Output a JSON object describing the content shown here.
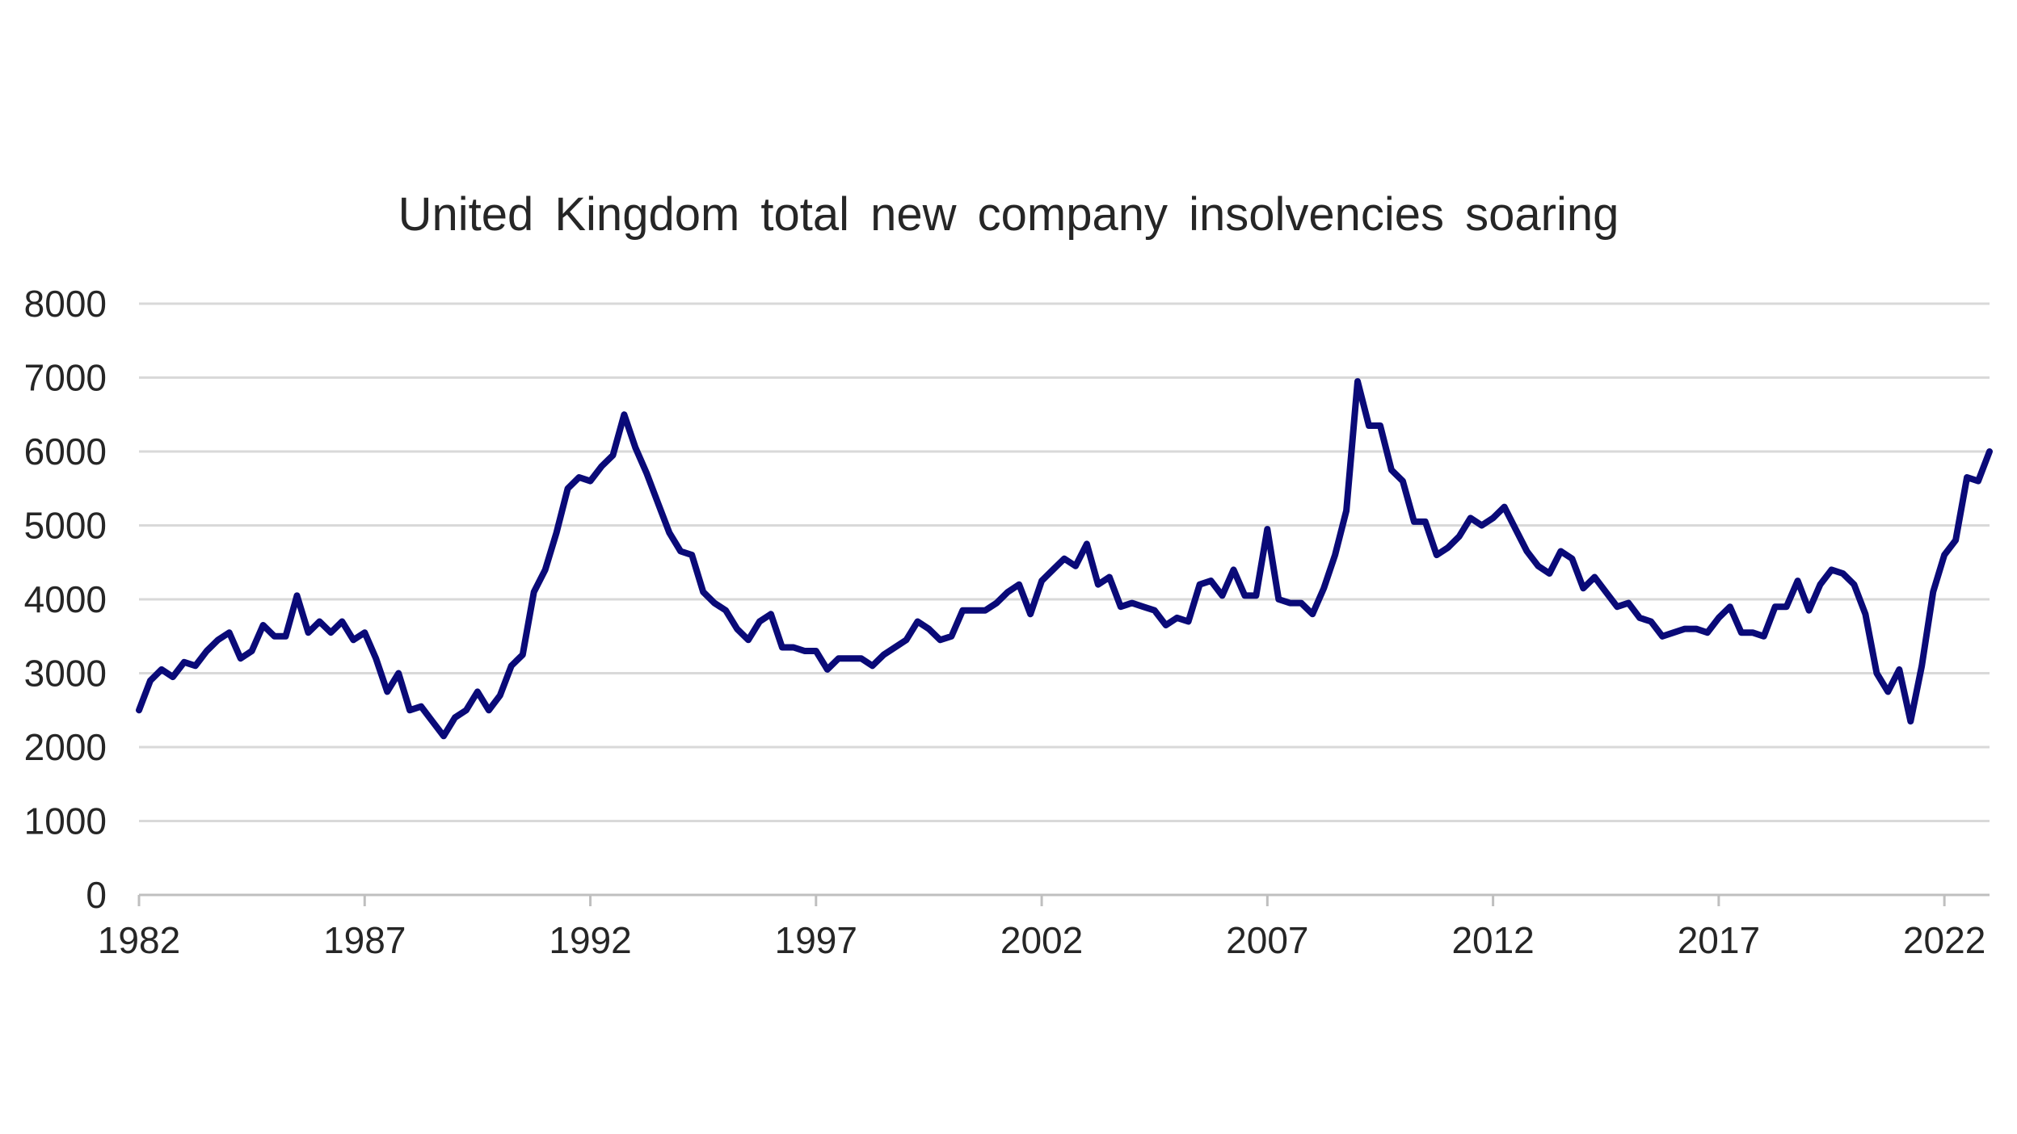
{
  "chart_data": {
    "type": "line",
    "title": "United Kingdom total new company insolvencies soaring",
    "xlabel": "",
    "ylabel": "",
    "ylim": [
      0,
      8000
    ],
    "yticks": [
      0,
      1000,
      2000,
      3000,
      4000,
      5000,
      6000,
      7000,
      8000
    ],
    "xticks": [
      1982,
      1987,
      1992,
      1997,
      2002,
      2007,
      2012,
      2017,
      2022
    ],
    "xlim": [
      1982,
      2023
    ],
    "grid": true,
    "legend": "none",
    "series_color": "#0a0a78",
    "series": [
      {
        "x": [
          1982.0,
          1982.25,
          1982.5,
          1982.75,
          1983.0,
          1983.25,
          1983.5,
          1983.75,
          1984.0,
          1984.25,
          1984.5,
          1984.75,
          1985.0,
          1985.25,
          1985.5,
          1985.75,
          1986.0,
          1986.25,
          1986.5,
          1986.75,
          1987.0,
          1987.25,
          1987.5,
          1987.75,
          1988.0,
          1988.25,
          1988.5,
          1988.75,
          1989.0,
          1989.25,
          1989.5,
          1989.75,
          1990.0,
          1990.25,
          1990.5,
          1990.75,
          1991.0,
          1991.25,
          1991.5,
          1991.75,
          1992.0,
          1992.25,
          1992.5,
          1992.75,
          1993.0,
          1993.25,
          1993.5,
          1993.75,
          1994.0,
          1994.25,
          1994.5,
          1994.75,
          1995.0,
          1995.25,
          1995.5,
          1995.75,
          1996.0,
          1996.25,
          1996.5,
          1996.75,
          1997.0,
          1997.25,
          1997.5,
          1997.75,
          1998.0,
          1998.25,
          1998.5,
          1998.75,
          1999.0,
          1999.25,
          1999.5,
          1999.75,
          2000.0,
          2000.25,
          2000.5,
          2000.75,
          2001.0,
          2001.25,
          2001.5,
          2001.75,
          2002.0,
          2002.25,
          2002.5,
          2002.75,
          2003.0,
          2003.25,
          2003.5,
          2003.75,
          2004.0,
          2004.25,
          2004.5,
          2004.75,
          2005.0,
          2005.25,
          2005.5,
          2005.75,
          2006.0,
          2006.25,
          2006.5,
          2006.75,
          2007.0,
          2007.25,
          2007.5,
          2007.75,
          2008.0,
          2008.25,
          2008.5,
          2008.75,
          2009.0,
          2009.25,
          2009.5,
          2009.75,
          2010.0,
          2010.25,
          2010.5,
          2010.75,
          2011.0,
          2011.25,
          2011.5,
          2011.75,
          2012.0,
          2012.25,
          2012.5,
          2012.75,
          2013.0,
          2013.25,
          2013.5,
          2013.75,
          2014.0,
          2014.25,
          2014.5,
          2014.75,
          2015.0,
          2015.25,
          2015.5,
          2015.75,
          2016.0,
          2016.25,
          2016.5,
          2016.75,
          2017.0,
          2017.25,
          2017.5,
          2017.75,
          2018.0,
          2018.25,
          2018.5,
          2018.75,
          2019.0,
          2019.25,
          2019.5,
          2019.75,
          2020.0,
          2020.25,
          2020.5,
          2020.75,
          2021.0,
          2021.25,
          2021.5,
          2021.75,
          2022.0,
          2022.25,
          2022.5,
          2022.75,
          2023.0
        ],
        "values": [
          2500,
          2900,
          3050,
          2950,
          3150,
          3100,
          3300,
          3450,
          3550,
          3200,
          3300,
          3650,
          3500,
          3500,
          4050,
          3550,
          3700,
          3550,
          3700,
          3450,
          3550,
          3200,
          2750,
          3000,
          2500,
          2550,
          2350,
          2150,
          2400,
          2500,
          2750,
          2500,
          2700,
          3100,
          3250,
          4100,
          4400,
          4900,
          5500,
          5650,
          5600,
          5800,
          5950,
          6500,
          6050,
          5700,
          5300,
          4900,
          4650,
          4600,
          4100,
          3950,
          3850,
          3600,
          3450,
          3700,
          3800,
          3350,
          3350,
          3300,
          3300,
          3050,
          3200,
          3200,
          3200,
          3100,
          3250,
          3350,
          3450,
          3700,
          3600,
          3450,
          3500,
          3850,
          3850,
          3850,
          3950,
          4100,
          4200,
          3800,
          4250,
          4400,
          4550,
          4450,
          4750,
          4200,
          4300,
          3900,
          3950,
          3900,
          3850,
          3650,
          3750,
          3700,
          4200,
          4250,
          4050,
          4400,
          4050,
          4050,
          4950,
          4000,
          3950,
          3950,
          3800,
          4150,
          4600,
          5200,
          6950,
          6350,
          6350,
          5750,
          5600,
          5050,
          5050,
          4600,
          4700,
          4850,
          5100,
          5000,
          5100,
          5250,
          4950,
          4650,
          4450,
          4350,
          4650,
          4550,
          4150,
          4300,
          4100,
          3900,
          3950,
          3750,
          3700,
          3500,
          3550,
          3600,
          3600,
          3550,
          3750,
          3900,
          3550,
          3550,
          3500,
          3900,
          3900,
          4250,
          3850,
          4200,
          4400,
          4350,
          4200,
          3800,
          3000,
          2750,
          3050,
          2350,
          3100,
          4100,
          4600,
          4800,
          5650,
          5600,
          6000
        ]
      }
    ]
  }
}
